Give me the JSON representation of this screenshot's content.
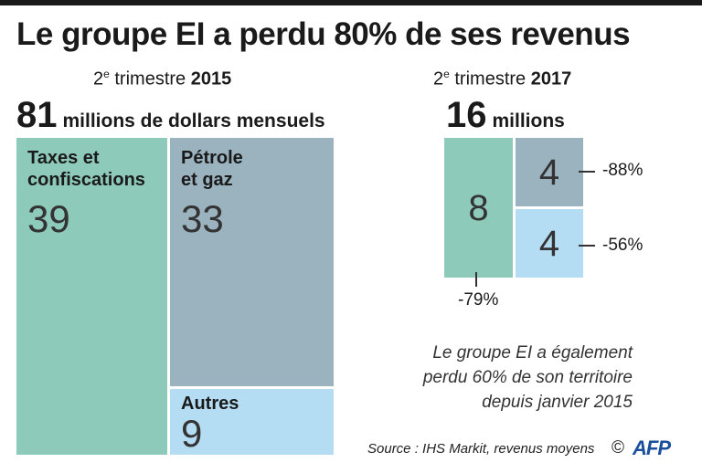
{
  "title": "Le groupe EI a perdu 80% de ses revenus",
  "chart_data": [
    {
      "type": "treemap",
      "period": {
        "prefix": "2",
        "sup": "e",
        "label": " trimestre ",
        "year": "2015"
      },
      "total": {
        "value": "81",
        "unit": "millions de dollars mensuels"
      },
      "cells": [
        {
          "label": "Taxes et\nconfiscations",
          "value": 39,
          "color": "#8ecab9"
        },
        {
          "label": "Pétrole\net gaz",
          "value": 33,
          "color": "#9bb2bf"
        },
        {
          "label": "Autres",
          "value": 9,
          "color": "#b4dcf2"
        }
      ]
    },
    {
      "type": "treemap",
      "period": {
        "prefix": "2",
        "sup": "e",
        "label": " trimestre ",
        "year": "2017"
      },
      "total": {
        "value": "16",
        "unit": "millions"
      },
      "cells": [
        {
          "category": "Taxes et confiscations",
          "value": 8,
          "change": "-79%",
          "color": "#8ecab9"
        },
        {
          "category": "Pétrole et gaz",
          "value": 4,
          "change": "-88%",
          "color": "#9bb2bf"
        },
        {
          "category": "Autres",
          "value": 4,
          "change": "-56%",
          "color": "#b4dcf2"
        }
      ]
    }
  ],
  "note": "Le groupe EI a également\nperdu 60% de son territoire\ndepuis janvier 2015",
  "source": "Source : IHS Markit, revenus moyens",
  "copyright": "©",
  "logo": "AFP"
}
